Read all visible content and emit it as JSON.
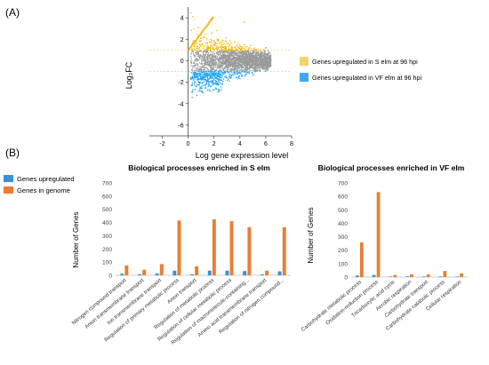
{
  "panel_a": {
    "label": "(A)",
    "xlabel": "Log gene expression level",
    "ylabel": "Log₂FC",
    "legend": [
      {
        "name": "Genes upregulated in S elm at 96 hpi",
        "color": "#F2D46A"
      },
      {
        "name": "Genes upregulated in VF elm at 96 hpi",
        "color": "#3FA9F5"
      }
    ]
  },
  "panel_b": {
    "label": "(B)",
    "legend": [
      {
        "name": "Genes upregulated",
        "color": "#3B8FD8"
      },
      {
        "name": "Genes in genome",
        "color": "#ED7D31"
      }
    ]
  },
  "colors": {
    "up": "#3B8FD8",
    "genome": "#ED7D31",
    "ma_up": "#F5B800",
    "ma_down": "#1EA7EF",
    "ma_ns": "#9A9A9A"
  },
  "chart_data": [
    {
      "type": "scatter",
      "title": "",
      "xlabel": "Log gene expression level",
      "ylabel": "Log₂FC",
      "xlim": [
        -3,
        8
      ],
      "ylim": [
        -7,
        5
      ],
      "xticks": [
        -2,
        0,
        2,
        4,
        6,
        8
      ],
      "yticks": [
        4,
        2,
        0,
        -2,
        -4,
        -6
      ],
      "series": [
        {
          "name": "Genes upregulated in S elm at 96 hpi",
          "color": "#F5B800"
        },
        {
          "name": "Genes upregulated in VF elm at 96 hpi",
          "color": "#1EA7EF"
        }
      ],
      "threshold_lines": [
        1,
        -1
      ],
      "grid": false
    },
    {
      "type": "bar",
      "title": "Biological processes enriched in S elm",
      "ylabel": "Number of Genes",
      "ylim": [
        0,
        700
      ],
      "yticks": [
        0,
        100,
        200,
        300,
        400,
        500,
        600,
        700
      ],
      "categories": [
        "Nitrogen compound transport",
        "Anion transmembrane transport",
        "Ion transmembrane transport",
        "Regulation of primary metabolic process",
        "Anion transport",
        "Regulation of metabolic process",
        "Regulation of cellular metabolic process",
        "Regulation of macromolecule-containing...",
        "Amino acid transmembrane transport",
        "Regulation of nitrogen compound..."
      ],
      "series": [
        {
          "name": "Genes upregulated",
          "values": [
            12,
            8,
            14,
            35,
            8,
            36,
            35,
            32,
            7,
            30
          ]
        },
        {
          "name": "Genes in genome",
          "values": [
            75,
            42,
            85,
            415,
            68,
            425,
            410,
            365,
            35,
            365
          ]
        }
      ],
      "grid": false
    },
    {
      "type": "bar",
      "title": "Biological processes enriched in VF elm",
      "ylabel": "Number of Genes",
      "ylim": [
        0,
        700
      ],
      "yticks": [
        0,
        100,
        200,
        300,
        400,
        500,
        600,
        700
      ],
      "categories": [
        "Carbohydrate metabolic process",
        "Oxidation-reduction process",
        "Tricarboxylic acid cycle",
        "Aerobic respiration",
        "Carbohydrate transport",
        "Carbohydrate catabolic process",
        "Cellular respiration"
      ],
      "series": [
        {
          "name": "Genes upregulated",
          "values": [
            12,
            16,
            4,
            5,
            4,
            5,
            4
          ]
        },
        {
          "name": "Genes in genome",
          "values": [
            258,
            632,
            15,
            20,
            20,
            45,
            28
          ]
        }
      ],
      "grid": false
    }
  ]
}
